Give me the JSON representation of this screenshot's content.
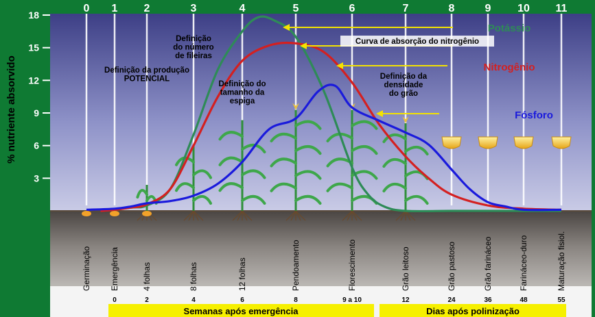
{
  "chart_data": {
    "type": "line",
    "ylabel": "% nutriente absorvido",
    "ylim": [
      0,
      18
    ],
    "yticks": [
      3,
      6,
      9,
      12,
      15,
      18
    ],
    "stages": [
      "0",
      "1",
      "2",
      "3",
      "4",
      "5",
      "6",
      "7",
      "8",
      "9",
      "10",
      "11"
    ],
    "stage_names": [
      "Germinação",
      "Emergência",
      "4 folhas",
      "8 folhas",
      "12 folhas",
      "Pendoamento",
      "Florescimento",
      "Grão leitoso",
      "Grão pastoso",
      "Grão farináceo",
      "Farináceo-duro",
      "Maturação fisiol."
    ],
    "x_numbers": [
      "0",
      "2",
      "4",
      "6",
      "8",
      "9 a 10",
      "12",
      "24",
      "36",
      "48",
      "55"
    ],
    "x_caption_left": "Semanas após emergência",
    "x_caption_right": "Dias após polinização",
    "series": [
      {
        "name": "Potássio",
        "color": "#2e8b57",
        "x": [
          0.5,
          1.5,
          2,
          2.5,
          3,
          3.5,
          4,
          4.3,
          4.6,
          5,
          5.5,
          6,
          6.3,
          6.6,
          7,
          8,
          9,
          10,
          11
        ],
        "values": [
          0,
          0.3,
          0.5,
          2,
          7,
          13,
          16.5,
          17.8,
          17.5,
          16,
          11,
          4,
          1.5,
          0.4,
          0,
          0,
          0,
          0,
          0
        ]
      },
      {
        "name": "Nitrogênio",
        "color": "#d42020",
        "x": [
          0.5,
          1,
          1.5,
          2,
          2.5,
          3,
          3.5,
          4,
          4.5,
          5,
          5.5,
          6,
          6.5,
          7,
          7.5,
          8,
          9,
          10,
          11
        ],
        "values": [
          0,
          0.1,
          0.3,
          0.6,
          2,
          6,
          10.5,
          13.8,
          15.2,
          15.4,
          14.6,
          11.8,
          8,
          5,
          3,
          1.5,
          0.5,
          0.2,
          0.1
        ]
      },
      {
        "name": "Fósforo",
        "color": "#1a1adc",
        "x": [
          0,
          1,
          1.5,
          2,
          2.5,
          3,
          3.5,
          4,
          4.5,
          5,
          5.4,
          5.7,
          6,
          6.5,
          7,
          7.5,
          8,
          8.5,
          9,
          9.5,
          10,
          11
        ],
        "values": [
          0.1,
          0.2,
          0.4,
          0.7,
          0.9,
          1.4,
          2.5,
          4.5,
          7.5,
          8.5,
          11,
          11.5,
          9.5,
          8.3,
          7.2,
          6.1,
          3.8,
          2,
          0.8,
          0.4,
          0.1,
          0.1
        ]
      }
    ],
    "annotations": [
      {
        "text": [
          "Definição da produção",
          "POTENCIAL"
        ]
      },
      {
        "text": [
          "Definição",
          "do número",
          "de fileiras"
        ]
      },
      {
        "text": [
          "Definição do",
          "tamanho da",
          "espiga"
        ]
      },
      {
        "text": [
          "Curva de absorção do nitrogênio"
        ]
      },
      {
        "text": [
          "Definição da",
          "densidade",
          "do grão"
        ]
      }
    ],
    "grid": false,
    "legend": "inline-right"
  }
}
